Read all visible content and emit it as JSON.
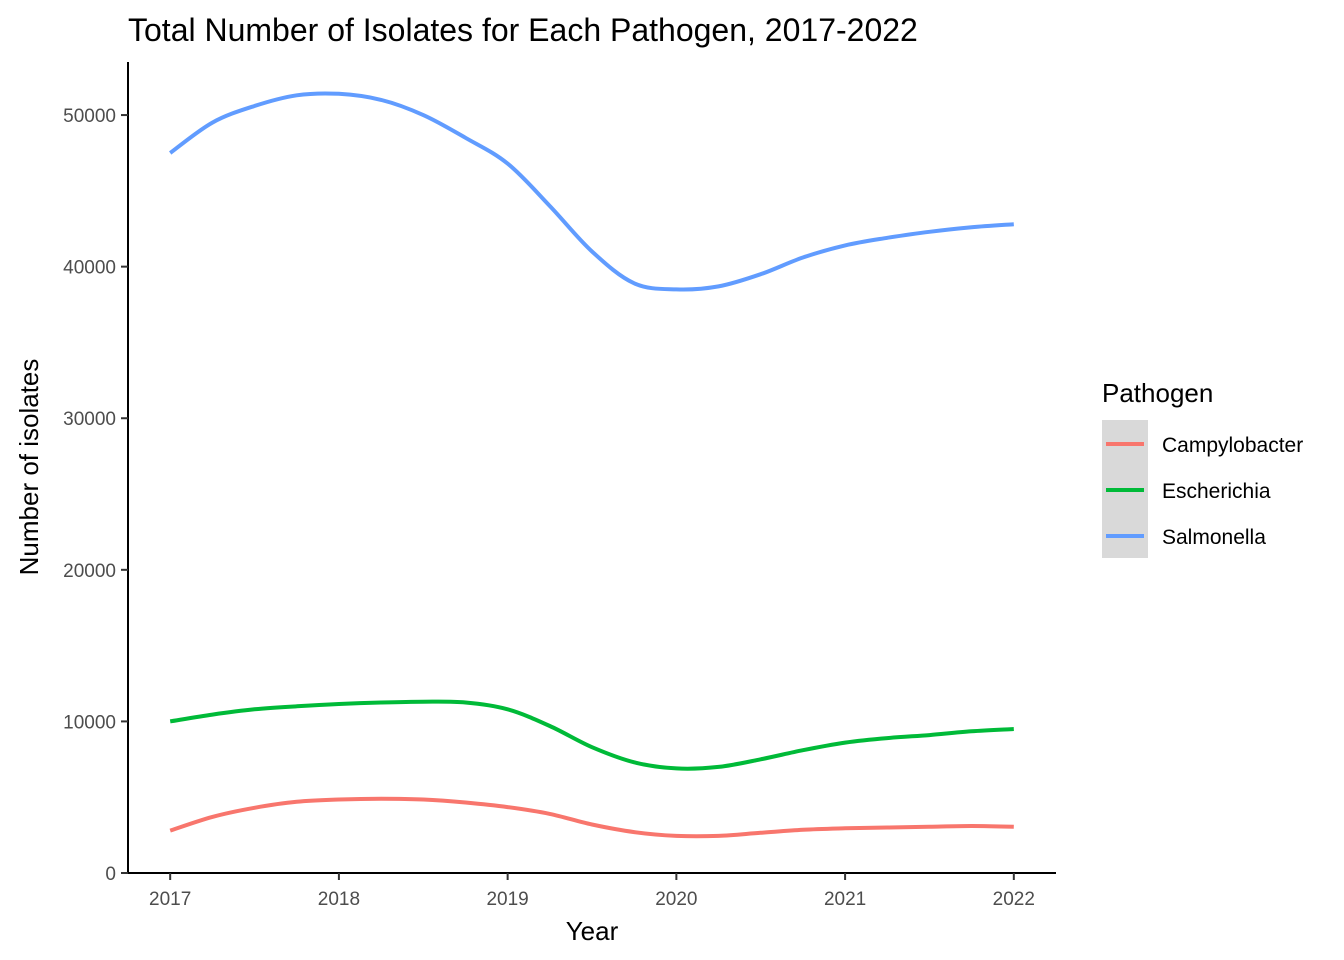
{
  "chart_data": {
    "type": "line",
    "title": "Total Number of Isolates for Each Pathogen, 2017-2022",
    "xlabel": "Year",
    "ylabel": "Number of isolates",
    "x": [
      2017,
      2017.25,
      2017.5,
      2017.75,
      2018,
      2018.25,
      2018.5,
      2018.75,
      2019,
      2019.25,
      2019.5,
      2019.75,
      2020,
      2020.25,
      2020.5,
      2020.75,
      2021,
      2021.25,
      2021.5,
      2021.75,
      2022
    ],
    "xlim": [
      2016.75,
      2022.25
    ],
    "ylim": [
      0,
      53500
    ],
    "x_ticks": [
      "2017",
      "2018",
      "2019",
      "2020",
      "2021",
      "2022"
    ],
    "y_ticks": [
      "0",
      "10000",
      "20000",
      "30000",
      "40000",
      "50000"
    ],
    "grid": false,
    "legend": {
      "title": "Pathogen",
      "placement": "right"
    },
    "series": [
      {
        "name": "Campylobacter",
        "color": "#F8766D",
        "values": [
          2800,
          3700,
          4300,
          4700,
          4850,
          4900,
          4850,
          4650,
          4350,
          3900,
          3200,
          2700,
          2450,
          2450,
          2650,
          2850,
          2950,
          3000,
          3050,
          3100,
          3050
        ]
      },
      {
        "name": "Escherichia",
        "color": "#00BA38",
        "values": [
          10000,
          10450,
          10800,
          11000,
          11150,
          11250,
          11300,
          11250,
          10800,
          9700,
          8300,
          7300,
          6900,
          7000,
          7500,
          8100,
          8600,
          8900,
          9100,
          9350,
          9500
        ]
      },
      {
        "name": "Salmonella",
        "color": "#619CFF",
        "values": [
          47500,
          49500,
          50600,
          51300,
          51400,
          51000,
          50000,
          48500,
          46800,
          44000,
          41000,
          38900,
          38500,
          38700,
          39500,
          40600,
          41400,
          41900,
          42300,
          42600,
          42800
        ]
      }
    ]
  }
}
